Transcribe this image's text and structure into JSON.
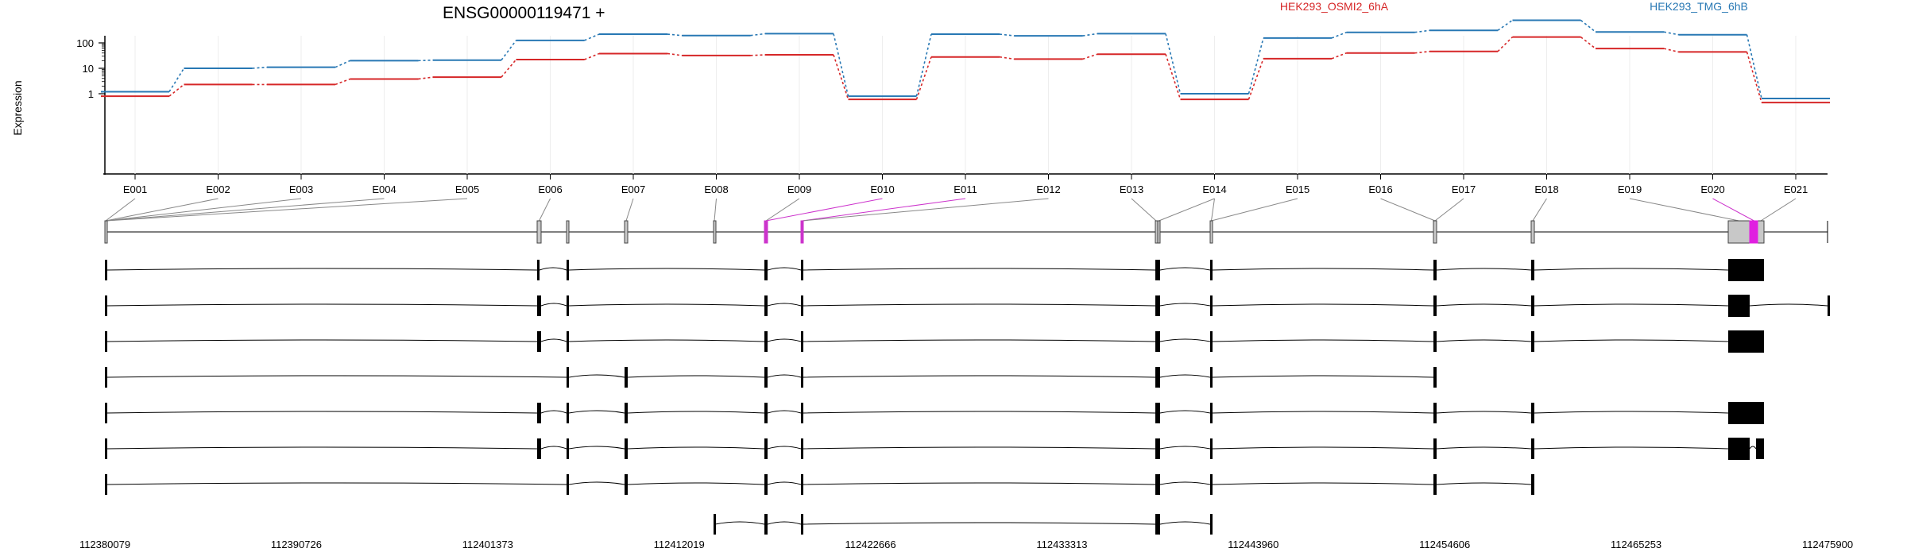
{
  "chart_data": {
    "type": "line",
    "title": "ENSG00000119471 +",
    "ylabel": "Expression",
    "y_scale": "log",
    "y_ticks": [
      "1",
      "10",
      "100"
    ],
    "categories": [
      "E001",
      "E002",
      "E003",
      "E004",
      "E005",
      "E006",
      "E007",
      "E008",
      "E009",
      "E010",
      "E011",
      "E012",
      "E013",
      "E014",
      "E015",
      "E016",
      "E017",
      "E018",
      "E019",
      "E020",
      "E021"
    ],
    "series": [
      {
        "name": "HEK293_OSMI2_6hA",
        "color": "#d62728",
        "values": [
          0.8,
          2.3,
          2.3,
          3.8,
          4.5,
          22,
          38,
          32,
          34,
          0.6,
          28,
          23,
          36,
          0.6,
          24,
          40,
          46,
          170,
          60,
          44,
          0.45
        ]
      },
      {
        "name": "HEK293_TMG_6hB",
        "color": "#2878b4",
        "values": [
          1.2,
          10,
          11,
          20,
          21,
          125,
          220,
          195,
          230,
          0.8,
          220,
          190,
          230,
          1.0,
          155,
          260,
          310,
          780,
          270,
          210,
          0.65
        ]
      }
    ],
    "genomic_coordinates": [
      "112380079",
      "112390726",
      "112401373",
      "112412019",
      "112422666",
      "112433313",
      "112443960",
      "112454606",
      "112465253",
      "112475900"
    ],
    "highlight_color": "#cc33cc",
    "exon_fill_color": "#000000",
    "gene_model_exon_color": "#c8c8c8"
  }
}
